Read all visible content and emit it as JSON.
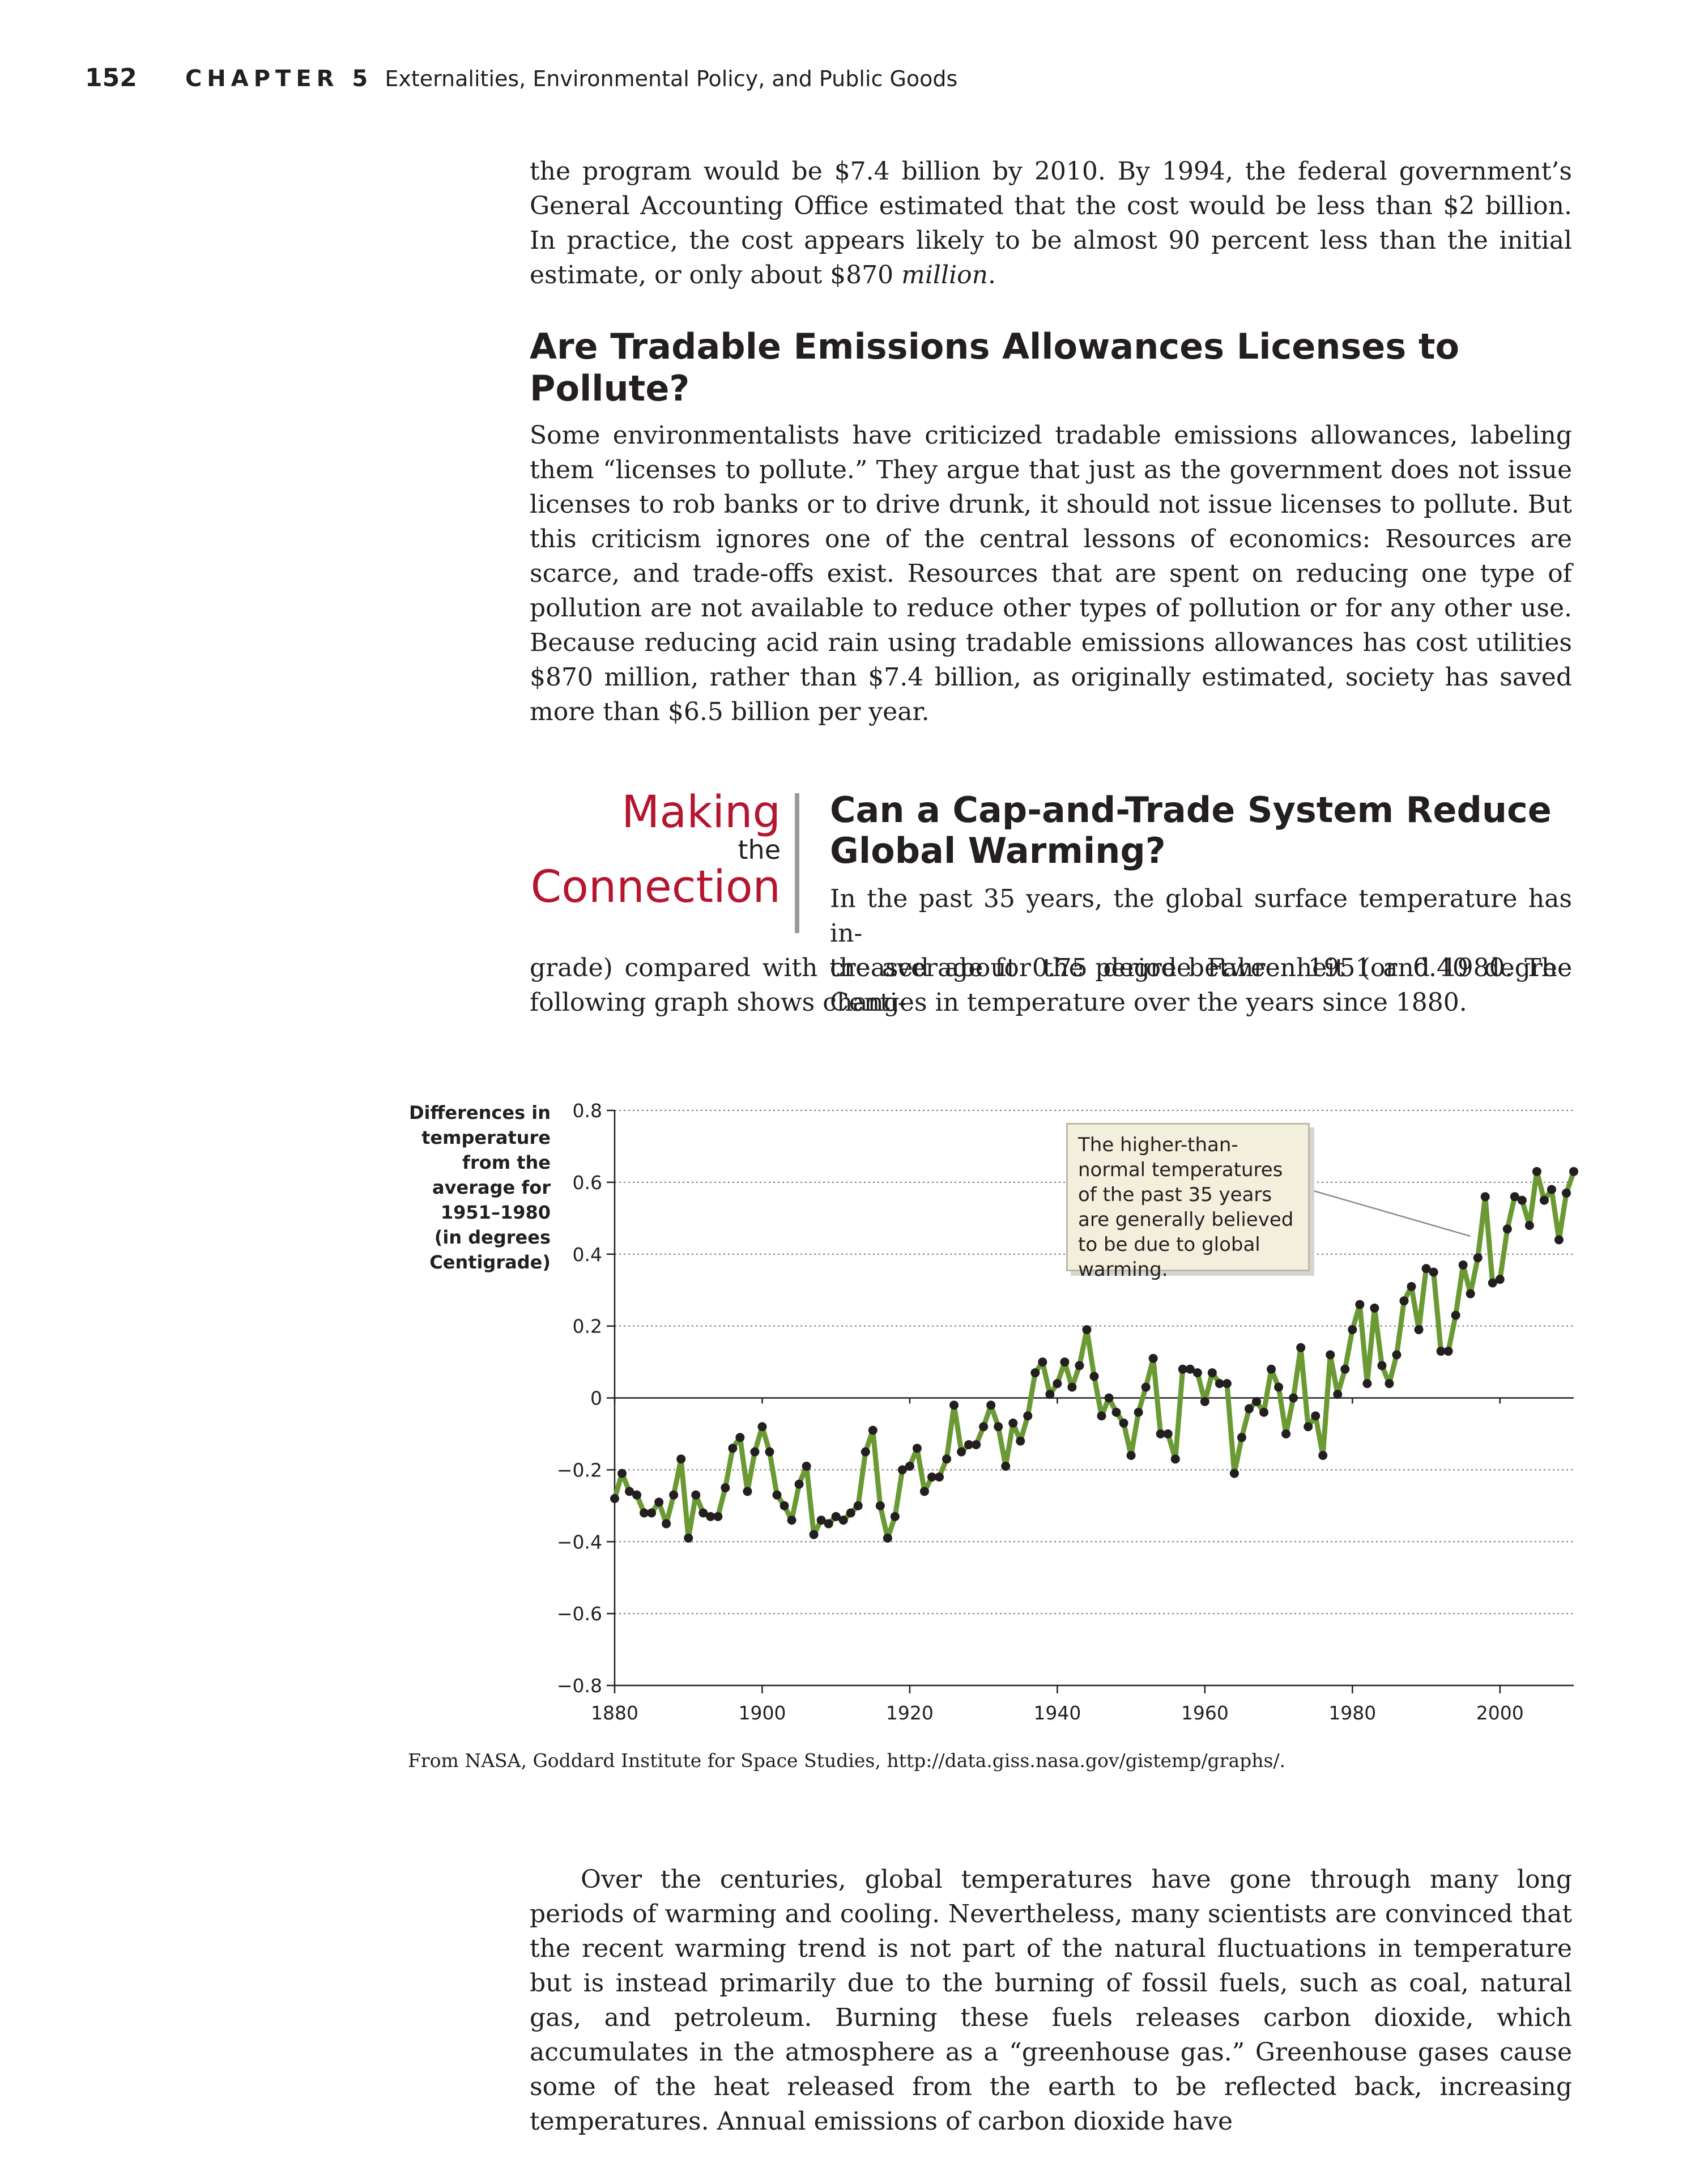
{
  "header": {
    "page_number": "152",
    "chapter_label": "CHAPTER 5",
    "chapter_title": "Externalities, Environmental Policy, and Public Goods"
  },
  "intro_paragraph": {
    "text": "the program would be $7.4 billion by 2010. By 1994, the federal government’s General Accounting Office estimated that the cost would be less than $2 billion. In practice, the cost appears likely to be almost 90 percent less than the initial estimate, or only about $870 ",
    "italic_tail": "million",
    "end": "."
  },
  "section": {
    "heading": "Are Tradable Emissions Allowances Licenses to Pollute?",
    "paragraph": "Some environmentalists have criticized tradable emissions allowances, labeling them “licenses to pollute.” They argue that just as the government does not issue licenses to rob banks or to drive drunk, it should not issue licenses to pollute. But this criticism ignores one of the central lessons of economics: Resources are scarce, and trade-offs exist. Resources that are spent on reducing one type of pollution are not available to reduce other types of pollution or for any other use. Because reducing acid rain using tradable emissions allowances has cost utilities $870 million, rather than $7.4 billion, as originally estimated, society has saved more than $6.5 billion per year."
  },
  "making_the_connection": {
    "logo_making": "Making",
    "logo_the": "the",
    "logo_connection": "Connection",
    "heading": "Can a Cap-and-Trade System Reduce Global Warming?",
    "text_line_1": "In the past 35 years, the global surface temperature has in-",
    "text_line_2": "creased about 0.75 degree Fahrenheit (or 0.40 degree Centi-",
    "text_rest": "grade) compared with the average for the period between 1951 and 1980. The following graph shows changes in temperature over the years since 1880."
  },
  "chart_data": {
    "type": "line",
    "title": "",
    "xlabel": "",
    "ylabel": "Differences in\ntemperature\nfrom the\naverage for\n1951–1980\n(in degrees\nCentigrade)",
    "xlim": [
      1880,
      2010
    ],
    "ylim": [
      -0.8,
      0.8
    ],
    "x_ticks": [
      1880,
      1900,
      1920,
      1940,
      1960,
      1980,
      2000
    ],
    "y_ticks": [
      -0.8,
      -0.6,
      -0.4,
      -0.2,
      0,
      0.2,
      0.4,
      0.6,
      0.8
    ],
    "y_tick_labels": [
      "−0.8",
      "−0.6",
      "−0.4",
      "−0.2",
      "0",
      "0.2",
      "0.4",
      "0.6",
      "0.8"
    ],
    "grid": "horizontal dotted",
    "line_color": "#6b9a34",
    "marker_color": "#231f20",
    "series": [
      {
        "x": [
          1880,
          1881,
          1882,
          1883,
          1884,
          1885,
          1886,
          1887,
          1888,
          1889,
          1890,
          1891,
          1892,
          1893,
          1894,
          1895,
          1896,
          1897,
          1898,
          1899,
          1900,
          1901,
          1902,
          1903,
          1904,
          1905,
          1906,
          1907,
          1908,
          1909,
          1910,
          1911,
          1912,
          1913,
          1914,
          1915,
          1916,
          1917,
          1918,
          1919,
          1920,
          1921,
          1922,
          1923,
          1924,
          1925,
          1926,
          1927,
          1928,
          1929,
          1930,
          1931,
          1932,
          1933,
          1934,
          1935,
          1936,
          1937,
          1938,
          1939,
          1940,
          1941,
          1942,
          1943,
          1944,
          1945,
          1946,
          1947,
          1948,
          1949,
          1950,
          1951,
          1952,
          1953,
          1954,
          1955,
          1956,
          1957,
          1958,
          1959,
          1960,
          1961,
          1962,
          1963,
          1964,
          1965,
          1966,
          1967,
          1968,
          1969,
          1970,
          1971,
          1972,
          1973,
          1974,
          1975,
          1976,
          1977,
          1978,
          1979,
          1980,
          1981,
          1982,
          1983,
          1984,
          1985,
          1986,
          1987,
          1988,
          1989,
          1990,
          1991,
          1992,
          1993,
          1994,
          1995,
          1996,
          1997,
          1998,
          1999,
          2000,
          2001,
          2002,
          2003,
          2004,
          2005,
          2006,
          2007,
          2008,
          2009,
          2010
        ],
        "y": [
          -0.28,
          -0.21,
          -0.26,
          -0.27,
          -0.32,
          -0.32,
          -0.29,
          -0.35,
          -0.27,
          -0.17,
          -0.39,
          -0.27,
          -0.32,
          -0.33,
          -0.33,
          -0.25,
          -0.14,
          -0.11,
          -0.26,
          -0.15,
          -0.08,
          -0.15,
          -0.27,
          -0.3,
          -0.34,
          -0.24,
          -0.19,
          -0.38,
          -0.34,
          -0.35,
          -0.33,
          -0.34,
          -0.32,
          -0.3,
          -0.15,
          -0.09,
          -0.3,
          -0.39,
          -0.33,
          -0.2,
          -0.19,
          -0.14,
          -0.26,
          -0.22,
          -0.22,
          -0.17,
          -0.02,
          -0.15,
          -0.13,
          -0.13,
          -0.08,
          -0.02,
          -0.08,
          -0.19,
          -0.07,
          -0.12,
          -0.05,
          0.07,
          0.1,
          0.01,
          0.04,
          0.1,
          0.03,
          0.09,
          0.19,
          0.06,
          -0.05,
          0.0,
          -0.04,
          -0.07,
          -0.16,
          -0.04,
          0.03,
          0.11,
          -0.1,
          -0.1,
          -0.17,
          0.08,
          0.08,
          0.07,
          -0.01,
          0.07,
          0.04,
          0.04,
          -0.21,
          -0.11,
          -0.03,
          -0.01,
          -0.04,
          0.08,
          0.03,
          -0.1,
          0.0,
          0.14,
          -0.08,
          -0.05,
          -0.16,
          0.12,
          0.01,
          0.08,
          0.19,
          0.26,
          0.04,
          0.25,
          0.09,
          0.04,
          0.12,
          0.27,
          0.31,
          0.19,
          0.36,
          0.35,
          0.13,
          0.13,
          0.23,
          0.37,
          0.29,
          0.39,
          0.56,
          0.32,
          0.33,
          0.47,
          0.56,
          0.55,
          0.48,
          0.63,
          0.55,
          0.58,
          0.44,
          0.57,
          0.63
        ]
      }
    ],
    "annotation": "The higher-than-normal temperatures of the past 35 years are generally believed to be due to global warming.",
    "source": "From NASA, Goddard Institute for Space Studies, http://data.giss.nasa.gov/gistemp/graphs/."
  },
  "closing_paragraph": "Over the centuries, global temperatures have gone through many long periods of warming and cooling. Nevertheless, many scientists are convinced that the recent warming trend is not part of the natural fluctuations in temperature but is instead primarily due to the burning of fossil fuels, such as coal, natural gas, and petroleum. Burning these fuels releases carbon dioxide, which accumulates in the atmosphere as a “greenhouse gas.” Greenhouse gases cause some of the heat released from the earth to be reflected back, increasing temperatures. Annual emissions of carbon dioxide have"
}
